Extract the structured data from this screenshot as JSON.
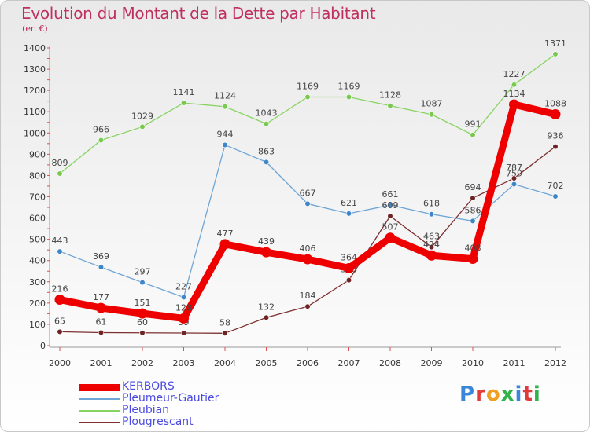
{
  "title": "Evolution du Montant de la Dette par Habitant",
  "subtitle": "(en €)",
  "logo": {
    "text": "Proxiti",
    "letter_colors": [
      "#3a86d8",
      "#e03a3a",
      "#f0a020",
      "#2fb34a",
      "#3a86d8",
      "#e03a3a",
      "#2fb34a"
    ]
  },
  "chart_data": {
    "type": "line",
    "x": [
      "2000",
      "2001",
      "2002",
      "2003",
      "2004",
      "2005",
      "2006",
      "2007",
      "2008",
      "2009",
      "2010",
      "2011",
      "2012"
    ],
    "y_ticks": [
      0,
      100,
      200,
      300,
      400,
      500,
      600,
      700,
      800,
      900,
      1000,
      1100,
      1200,
      1300,
      1400
    ],
    "ylim": [
      0,
      1400
    ],
    "grid": false,
    "legend_position": "bottom-left",
    "series": [
      {
        "name": "Pleubian",
        "color": "#88d462",
        "dot": "#7ac850",
        "values": [
          809,
          966,
          1029,
          1141,
          1124,
          1043,
          1169,
          1169,
          1128,
          1087,
          991,
          1227,
          1371
        ]
      },
      {
        "name": "Pleumeur-Gautier",
        "color": "#6fa6d6",
        "dot": "#3f86c8",
        "values": [
          443,
          369,
          297,
          227,
          944,
          863,
          667,
          621,
          661,
          618,
          586,
          759,
          702
        ]
      },
      {
        "name": "Plougrescant",
        "color": "#7e3030",
        "dot": "#6e2424",
        "values": [
          65,
          61,
          60,
          59,
          58,
          132,
          184,
          308,
          609,
          463,
          694,
          787,
          936
        ]
      },
      {
        "name": "KERBORS",
        "color": "#ee0000",
        "dot": "#ee0000",
        "values": [
          216,
          177,
          151,
          128,
          477,
          439,
          406,
          364,
          507,
          424,
          408,
          1134,
          1088
        ]
      }
    ],
    "legend_order": [
      "KERBORS",
      "Pleumeur-Gautier",
      "Pleubian",
      "Plougrescant"
    ]
  }
}
